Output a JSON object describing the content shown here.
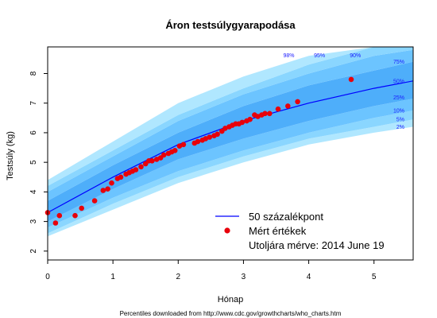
{
  "chart_data": {
    "type": "line",
    "title": "Áron  testsúlygyarapodása",
    "xlabel": "Hónap",
    "ylabel": "Testsúly (kg)",
    "xlim": [
      0,
      5.6
    ],
    "ylim": [
      1.7,
      8.9
    ],
    "xticks": [
      0,
      1,
      2,
      3,
      4,
      5
    ],
    "yticks": [
      2,
      3,
      4,
      5,
      6,
      7,
      8
    ],
    "grid": false,
    "percentile_months": [
      0,
      1,
      2,
      3,
      4,
      5,
      5.6
    ],
    "percentile_bands": [
      {
        "name": "2%",
        "values": [
          2.5,
          3.4,
          4.3,
          5.0,
          5.6,
          6.0,
          6.2
        ]
      },
      {
        "name": "5%",
        "values": [
          2.6,
          3.6,
          4.5,
          5.2,
          5.8,
          6.2,
          6.45
        ]
      },
      {
        "name": "10%",
        "values": [
          2.8,
          3.8,
          4.7,
          5.4,
          6.0,
          6.5,
          6.75
        ]
      },
      {
        "name": "25%",
        "values": [
          3.0,
          4.1,
          5.1,
          5.8,
          6.4,
          6.9,
          7.15
        ]
      },
      {
        "name": "50%",
        "values": [
          3.3,
          4.5,
          5.6,
          6.4,
          7.0,
          7.5,
          7.75
        ]
      },
      {
        "name": "75%",
        "values": [
          3.7,
          4.9,
          6.0,
          6.9,
          7.6,
          8.1,
          8.4
        ]
      },
      {
        "name": "90%",
        "values": [
          4.0,
          5.2,
          6.4,
          7.3,
          8.0,
          8.6,
          8.8
        ]
      },
      {
        "name": "95%",
        "values": [
          4.2,
          5.4,
          6.6,
          7.5,
          8.3,
          8.9,
          8.9
        ]
      },
      {
        "name": "98%",
        "values": [
          4.4,
          5.7,
          7.0,
          7.9,
          8.6,
          8.9,
          8.9
        ]
      }
    ],
    "median_series": {
      "name": "50 százalékpont",
      "color": "#0000ff"
    },
    "measured": {
      "name": "Mért értékek",
      "color": "#e8000b",
      "x": [
        0.0,
        0.12,
        0.18,
        0.42,
        0.52,
        0.72,
        0.85,
        0.92,
        0.98,
        1.07,
        1.12,
        1.2,
        1.25,
        1.3,
        1.35,
        1.43,
        1.5,
        1.55,
        1.6,
        1.67,
        1.73,
        1.78,
        1.85,
        1.9,
        1.95,
        2.02,
        2.08,
        2.25,
        2.3,
        2.37,
        2.42,
        2.48,
        2.55,
        2.6,
        2.67,
        2.72,
        2.78,
        2.83,
        2.88,
        2.93,
        2.98,
        3.05,
        3.1,
        3.17,
        3.22,
        3.28,
        3.33,
        3.4,
        3.53,
        3.68,
        3.83,
        4.65
      ],
      "y": [
        3.3,
        2.95,
        3.2,
        3.2,
        3.45,
        3.7,
        4.05,
        4.1,
        4.3,
        4.45,
        4.5,
        4.6,
        4.65,
        4.7,
        4.75,
        4.85,
        4.95,
        5.05,
        5.05,
        5.1,
        5.15,
        5.25,
        5.3,
        5.35,
        5.4,
        5.55,
        5.6,
        5.65,
        5.7,
        5.75,
        5.8,
        5.85,
        5.9,
        5.95,
        6.05,
        6.15,
        6.2,
        6.25,
        6.3,
        6.3,
        6.35,
        6.4,
        6.45,
        6.6,
        6.55,
        6.6,
        6.65,
        6.65,
        6.8,
        6.9,
        7.05,
        7.8
      ]
    },
    "legend": {
      "placement": "bottom-right",
      "median_label": "50 százalékpont",
      "measured_label": "Mért értékek",
      "last_measured_label": "Utoljára mérve:  2014 June 19"
    },
    "band_colors": [
      "#b0e7ff",
      "#8ad6ff",
      "#6cc4ff",
      "#4eaefa",
      "#4eaefa",
      "#6cc4ff",
      "#8ad6ff",
      "#b0e7ff"
    ],
    "footnote": "Percentiles downloaded from http://www.cdc.gov/growthcharts/who_charts.htm"
  }
}
